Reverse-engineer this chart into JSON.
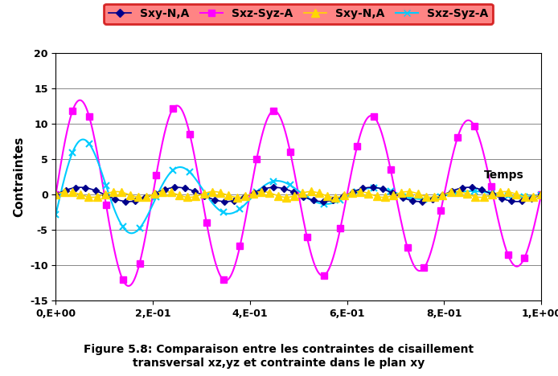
{
  "title": "Figure 5.8: Comparaison entre les contraintes de cisaillement\ntransversal xz,yz et contrainte dans le plan xy",
  "xlabel": "Temps",
  "ylabel": "Contraintes",
  "xlim": [
    0,
    1.0
  ],
  "ylim": [
    -15,
    20
  ],
  "yticks": [
    -15,
    -10,
    -5,
    0,
    5,
    10,
    15,
    20
  ],
  "xtick_labels": [
    "0,E+00",
    "2,E-01",
    "4,E-01",
    "6,E-01",
    "8,E-01",
    "1,E+00"
  ],
  "xtick_vals": [
    0.0,
    0.2,
    0.4,
    0.6,
    0.8,
    1.0
  ],
  "series": [
    {
      "label": "Sxy-N,A",
      "color": "#00008B",
      "marker": "D",
      "markersize": 4,
      "linewidth": 1.2,
      "amplitude": 1.0,
      "frequency": 5.0,
      "phase": 0.0
    },
    {
      "label": "Sxz-Syz-A",
      "color": "#FF00FF",
      "marker": "s",
      "markersize": 6,
      "linewidth": 1.5,
      "amplitude": 13.5,
      "frequency": 5.0,
      "phase": 0.0
    },
    {
      "label": "Sxy-N,A",
      "color": "#FFD700",
      "marker": "^",
      "markersize": 7,
      "linewidth": 1.2,
      "amplitude": 0.4,
      "frequency": 10.0,
      "phase": 0.0
    },
    {
      "label": "Sxz-Syz-A",
      "color": "#00CCFF",
      "marker": "x",
      "markersize": 6,
      "linewidth": 1.5,
      "amplitude": 9.5,
      "frequency": 5.0,
      "phase": -0.3,
      "decay": 3.5
    }
  ],
  "n_markers_magenta": 30,
  "n_markers_cyan": 30,
  "n_markers_blue": 50,
  "n_markers_yellow": 60,
  "legend_bg_color1": "#FF8888",
  "legend_bg_color2": "#FF0000",
  "background_color": "#FFFFFF",
  "grid_color": "#888888"
}
